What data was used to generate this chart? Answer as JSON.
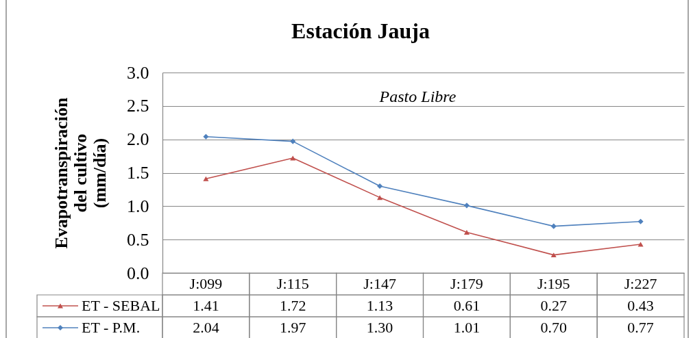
{
  "chart_data": {
    "type": "line",
    "title": "Estación Jauja",
    "ylabel": "Evapotranspiración\ndel cultivo\n(mm/día)",
    "annotations": [
      "Pasto Libre"
    ],
    "categories": [
      "J:099",
      "J:115",
      "J:147",
      "J:179",
      "J:195",
      "J:227"
    ],
    "series": [
      {
        "name": "ET - SEBAL",
        "color": "#c0504d",
        "marker": "triangle",
        "values": [
          1.41,
          1.72,
          1.13,
          0.61,
          0.27,
          0.43
        ],
        "value_labels": [
          "1.41",
          "1.72",
          "1.13",
          "0.61",
          "0.27",
          "0.43"
        ]
      },
      {
        "name": "ET - P.M.",
        "color": "#4f81bd",
        "marker": "diamond",
        "values": [
          2.04,
          1.97,
          1.3,
          1.01,
          0.7,
          0.77
        ],
        "value_labels": [
          "2.04",
          "1.97",
          "1.30",
          "1.01",
          "0.70",
          "0.77"
        ]
      }
    ],
    "ylim": [
      0,
      3
    ],
    "yticks": [
      {
        "value": 0,
        "label": "0.0"
      },
      0.5,
      {
        "value": 1,
        "label": "1.0"
      },
      1.5,
      {
        "value": 2,
        "label": "2.0"
      },
      2.5,
      {
        "value": 3,
        "label": "3.0"
      }
    ],
    "grid": "y",
    "legend": "bottom"
  }
}
